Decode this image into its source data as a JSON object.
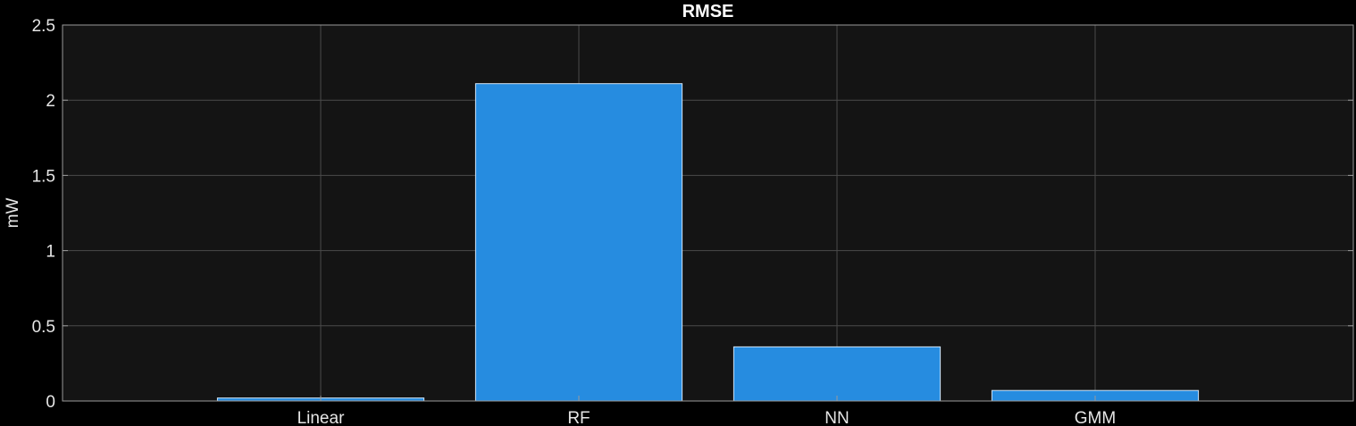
{
  "chart_data": {
    "type": "bar",
    "title": "RMSE",
    "xlabel": "",
    "ylabel": "mW",
    "categories": [
      "Linear",
      "RF",
      "NN",
      "GMM"
    ],
    "values": [
      0.02,
      2.11,
      0.36,
      0.07
    ],
    "ylim": [
      0,
      2.5
    ],
    "yticks": [
      "0",
      "0.5",
      "1",
      "1.5",
      "2",
      "2.5"
    ],
    "ytick_values": [
      0,
      0.5,
      1,
      1.5,
      2,
      2.5
    ],
    "xlim": [
      0,
      5
    ],
    "grid": true,
    "colors": {
      "background": "#000000",
      "axes": "#141414",
      "bar": "#268ce0",
      "bar_edge": "#cfe3f5",
      "grid": "#4a4a4a",
      "text": "#e6e6e6"
    }
  }
}
